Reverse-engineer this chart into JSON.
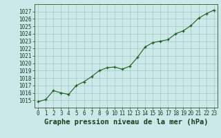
{
  "x": [
    0,
    1,
    2,
    3,
    4,
    5,
    6,
    7,
    8,
    9,
    10,
    11,
    12,
    13,
    14,
    15,
    16,
    17,
    18,
    19,
    20,
    21,
    22,
    23
  ],
  "y": [
    1014.8,
    1015.1,
    1016.3,
    1016.0,
    1015.8,
    1017.0,
    1017.5,
    1018.2,
    1019.0,
    1019.4,
    1019.5,
    1019.2,
    1019.6,
    1020.8,
    1022.2,
    1022.8,
    1023.0,
    1023.2,
    1024.0,
    1024.4,
    1025.1,
    1026.1,
    1026.7,
    1027.2
  ],
  "line_color": "#1a5c1a",
  "marker_color": "#1a5c1a",
  "bg_color": "#cce8e8",
  "grid_color": "#a0c8c0",
  "title": "Graphe pression niveau de la mer (hPa)",
  "ylim_min": 1014,
  "ylim_max": 1028,
  "ytick_min": 1015,
  "ytick_max": 1027,
  "xlim_min": -0.5,
  "xlim_max": 23.5,
  "title_fontsize": 7.5,
  "tick_fontsize": 5.5
}
